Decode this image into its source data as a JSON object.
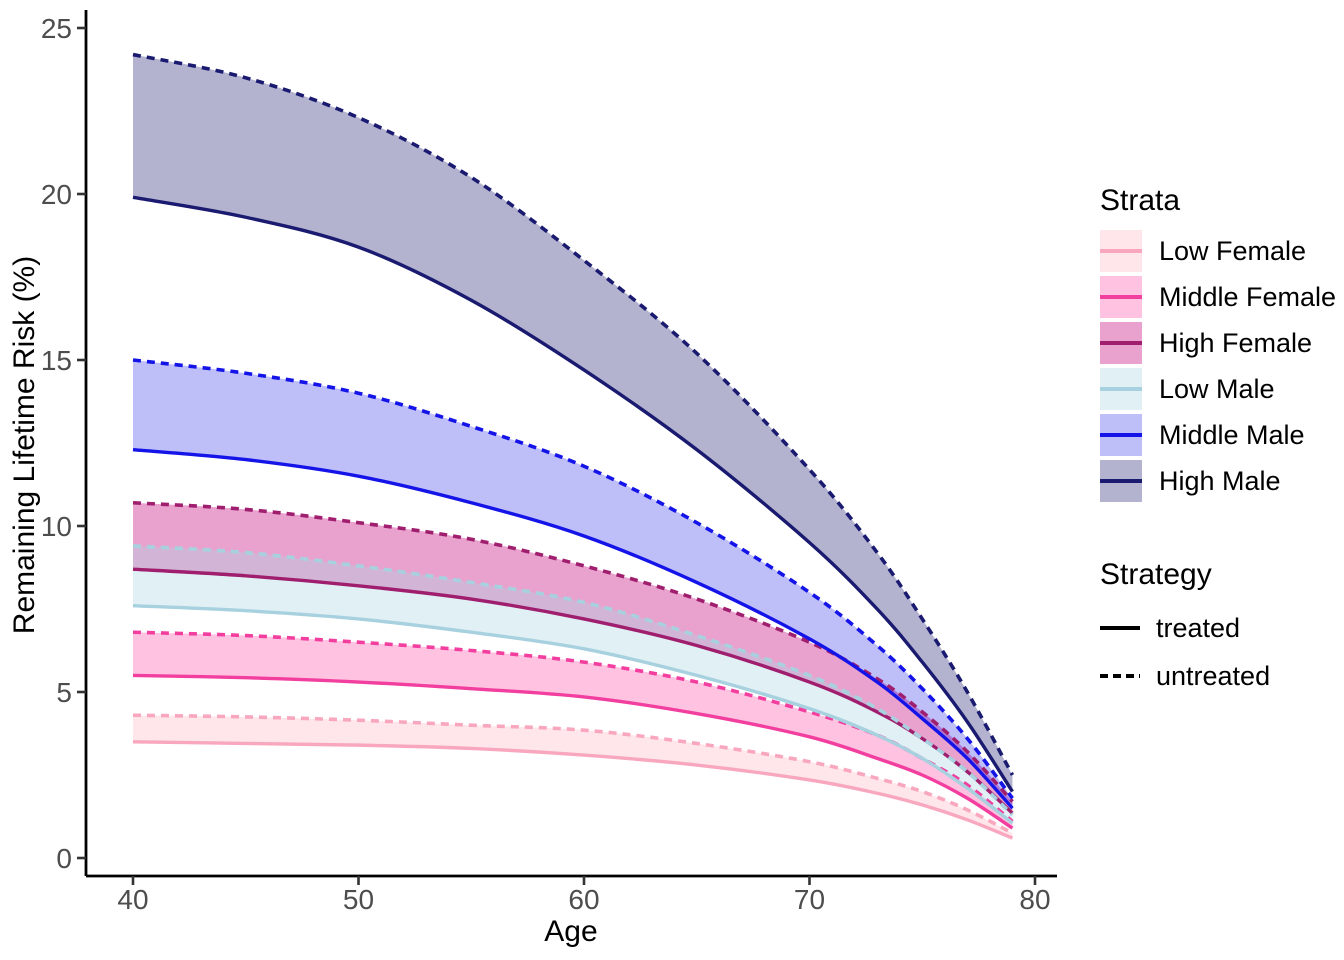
{
  "chart_data": {
    "type": "line",
    "title": "",
    "xlabel": "Age",
    "ylabel": "Remaining Lifetime Risk (%)",
    "x_ticks": [
      40,
      50,
      60,
      70,
      80
    ],
    "y_ticks": [
      0,
      5,
      10,
      15,
      20,
      25
    ],
    "xlim": [
      38,
      81.5
    ],
    "ylim": [
      0,
      25.3
    ],
    "grid": false,
    "legend_position": "right",
    "axis_color": "#000000",
    "tick_label_color": "#4D4D4D",
    "legend": {
      "strata_title": "Strata",
      "strategy_title": "Strategy"
    },
    "ages": [
      40,
      45,
      50,
      55,
      60,
      65,
      70,
      73,
      75,
      77,
      79
    ],
    "strata": [
      {
        "label": "Low Female",
        "line_color": "#F8A7BE",
        "fill_color": "rgba(255,192,203,0.40)",
        "treated": [
          3.5,
          3.45,
          3.4,
          3.3,
          3.1,
          2.8,
          2.35,
          1.95,
          1.6,
          1.15,
          0.6
        ],
        "untreated": [
          4.3,
          4.25,
          4.15,
          4.0,
          3.85,
          3.45,
          2.9,
          2.4,
          2.0,
          1.45,
          0.75
        ]
      },
      {
        "label": "Middle Female",
        "line_color": "#F23F9F",
        "fill_color": "rgba(255,105,180,0.40)",
        "treated": [
          5.5,
          5.43,
          5.3,
          5.1,
          4.85,
          4.35,
          3.65,
          3.0,
          2.5,
          1.8,
          0.9
        ],
        "untreated": [
          6.8,
          6.7,
          6.5,
          6.25,
          5.9,
          5.3,
          4.4,
          3.7,
          3.0,
          2.2,
          1.1
        ]
      },
      {
        "label": "High Female",
        "line_color": "#A01E6E",
        "fill_color": "rgba(199,21,133,0.40)",
        "treated": [
          8.7,
          8.5,
          8.2,
          7.8,
          7.2,
          6.4,
          5.3,
          4.4,
          3.6,
          2.6,
          1.35
        ],
        "untreated": [
          10.7,
          10.5,
          10.1,
          9.6,
          8.8,
          7.8,
          6.5,
          5.4,
          4.4,
          3.2,
          1.7
        ]
      },
      {
        "label": "Low Male",
        "line_color": "#A8D1DF",
        "fill_color": "rgba(173,216,230,0.38)",
        "treated": [
          7.6,
          7.45,
          7.2,
          6.8,
          6.3,
          5.5,
          4.5,
          3.7,
          3.0,
          2.1,
          1.05
        ],
        "untreated": [
          9.4,
          9.2,
          8.8,
          8.3,
          7.7,
          6.7,
          5.5,
          4.5,
          3.6,
          2.6,
          1.3
        ]
      },
      {
        "label": "Middle Male",
        "line_color": "#1414E8",
        "fill_color": "rgba(20,20,235,0.28)",
        "treated": [
          12.3,
          12.0,
          11.5,
          10.7,
          9.7,
          8.3,
          6.6,
          5.3,
          4.2,
          3.0,
          1.5
        ],
        "untreated": [
          15.0,
          14.6,
          14.0,
          13.0,
          11.8,
          10.1,
          8.0,
          6.4,
          5.1,
          3.6,
          1.8
        ]
      },
      {
        "label": "High Male",
        "line_color": "#1A1A70",
        "fill_color": "rgba(25,25,112,0.33)",
        "treated": [
          19.9,
          19.3,
          18.4,
          16.8,
          14.7,
          12.3,
          9.5,
          7.5,
          5.9,
          4.1,
          2.0
        ],
        "untreated": [
          24.2,
          23.5,
          22.3,
          20.5,
          18.0,
          15.2,
          11.7,
          9.2,
          7.2,
          5.0,
          2.5
        ]
      }
    ],
    "strategies": [
      {
        "label": "treated",
        "style": "solid",
        "key_color": "#000000"
      },
      {
        "label": "untreated",
        "style": "dashed",
        "key_color": "#000000"
      }
    ]
  }
}
